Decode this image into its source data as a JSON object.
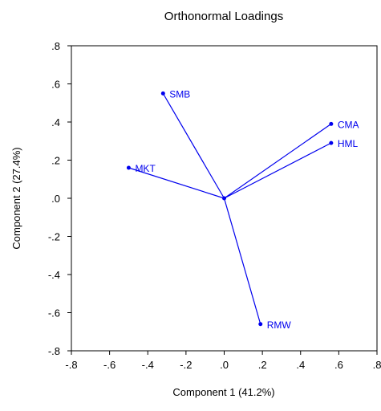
{
  "chart_data": {
    "type": "scatter",
    "title": "Orthonormal Loadings",
    "xlabel": "Component 1 (41.2%)",
    "ylabel": "Component 2 (27.4%)",
    "xlim": [
      -0.8,
      0.8
    ],
    "ylim": [
      -0.8,
      0.8
    ],
    "xticks": [
      -0.8,
      -0.6,
      -0.4,
      -0.2,
      0.0,
      0.2,
      0.4,
      0.6,
      0.8
    ],
    "yticks": [
      -0.8,
      -0.6,
      -0.4,
      -0.2,
      0.0,
      0.2,
      0.4,
      0.6,
      0.8
    ],
    "xtick_labels": [
      "-.8",
      "-.6",
      "-.4",
      "-.2",
      ".0",
      ".2",
      ".4",
      ".6",
      ".8"
    ],
    "ytick_labels": [
      "-.8",
      "-.6",
      "-.4",
      "-.2",
      ".0",
      ".2",
      ".4",
      ".6",
      ".8"
    ],
    "grid": false,
    "vectors_from_origin": true,
    "color": "#0000ee",
    "points": [
      {
        "label": "SMB",
        "x": -0.32,
        "y": 0.55
      },
      {
        "label": "CMA",
        "x": 0.56,
        "y": 0.39
      },
      {
        "label": "HML",
        "x": 0.56,
        "y": 0.29
      },
      {
        "label": "MKT",
        "x": -0.5,
        "y": 0.16
      },
      {
        "label": "RMW",
        "x": 0.19,
        "y": -0.66
      }
    ]
  }
}
